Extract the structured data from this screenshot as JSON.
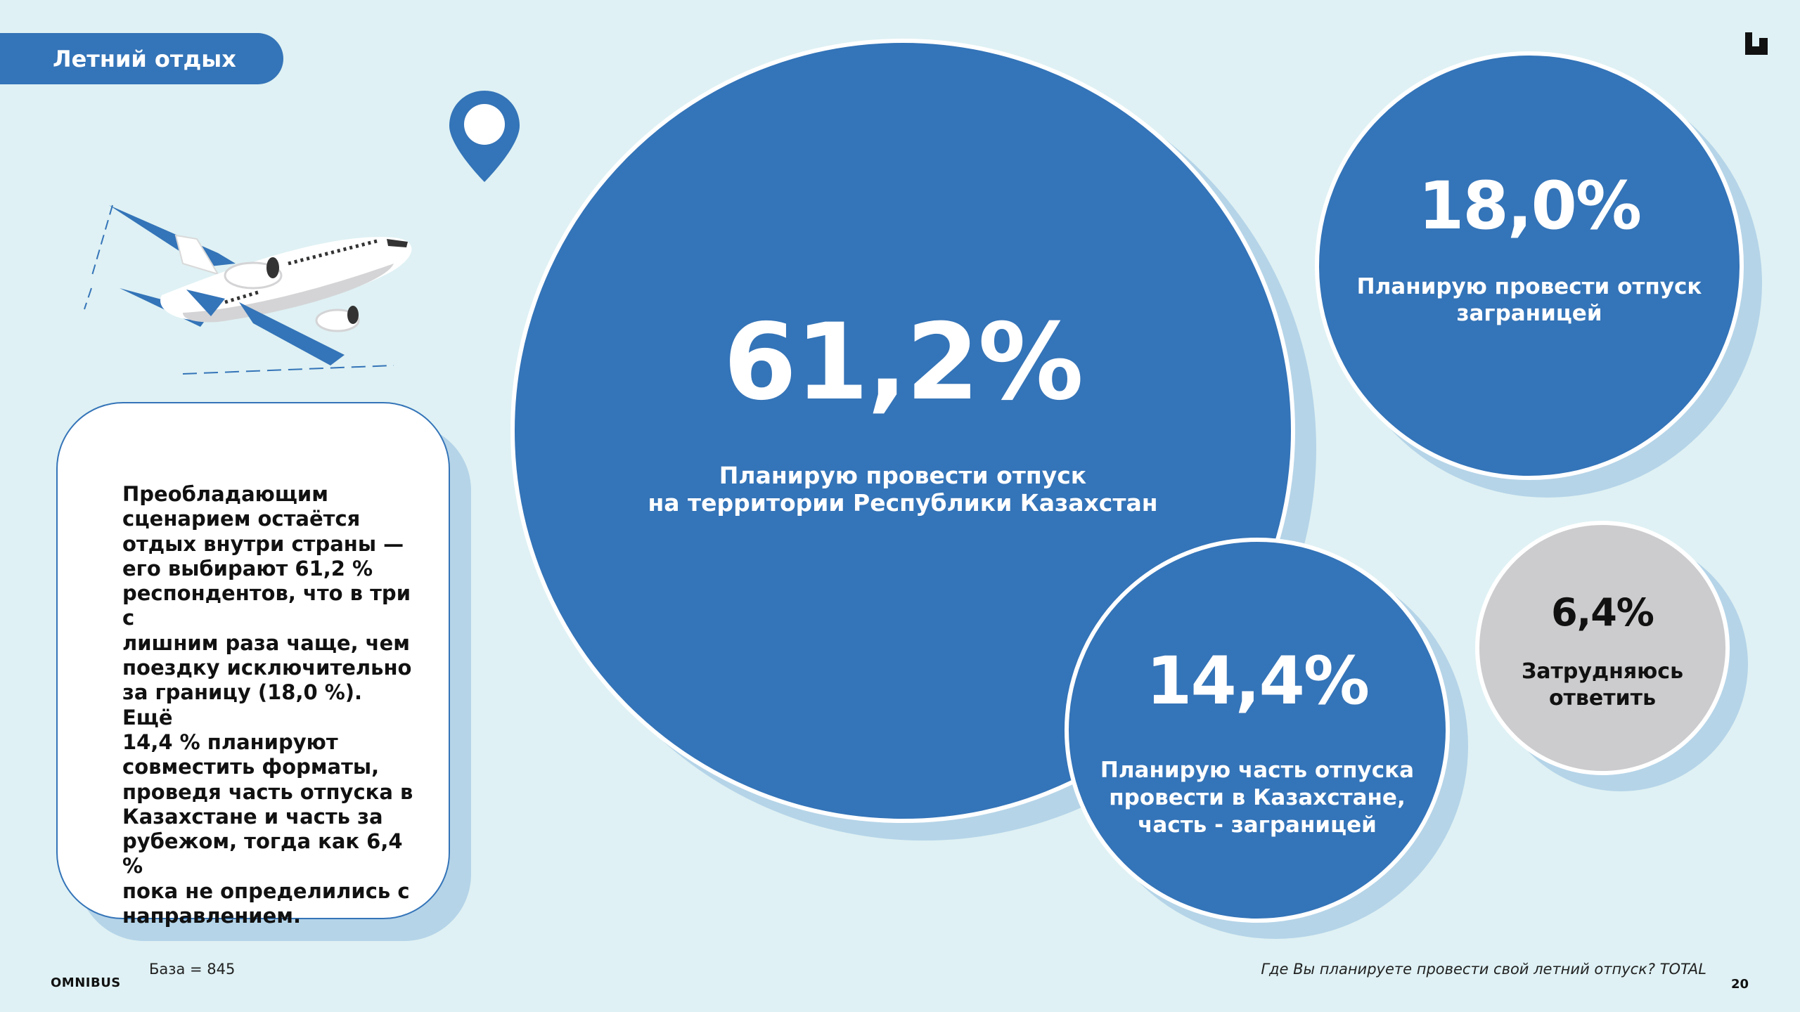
{
  "header": {
    "title": "Летний отдых"
  },
  "note": {
    "text": "Преобладающим\nсценарием остаётся\nотдых внутри страны —\nего выбирают 61,2 %\nреспондентов, что в три с\nлишним раза чаще, чем\nпоездку исключительно\nза границу (18,0 %). Ещё\n14,4 % планируют\nсовместить форматы,\nпроведя часть отпуска в\nКазахстане и часть за\nрубежом, тогда как 6,4 %\nпока не определились с\nнаправлением."
  },
  "chart_data": {
    "type": "bubble",
    "unit": "%",
    "question": "Где Вы планируете провести свой летний отпуск? TOTAL",
    "base": "База = 845",
    "series": [
      {
        "label": "61,2%",
        "value": 61.2,
        "name": "Планирую провести отпуск\nна территории Республики Казахстан",
        "color": "#3474b8"
      },
      {
        "label": "18,0%",
        "value": 18.0,
        "name": "Планирую провести отпуск\nзаграницей",
        "color": "#3474b8"
      },
      {
        "label": "14,4%",
        "value": 14.4,
        "name": "Планирую часть отпуска\nпровести в Казахстане,\nчасть - заграницей",
        "color": "#3474b8"
      },
      {
        "label": "6,4%",
        "value": 6.4,
        "name": "Затрудняюсь\nответить",
        "color": "#cccbcd"
      }
    ]
  },
  "footer": {
    "brand": "OMNIBUS",
    "base": "База = 845",
    "question": "Где Вы планируете провести свой летний отпуск? TOTAL",
    "page": "20"
  },
  "icons": {
    "brand_mark": "corner-logo-icon",
    "pin": "location-pin-icon",
    "plane": "airplane-icon"
  }
}
